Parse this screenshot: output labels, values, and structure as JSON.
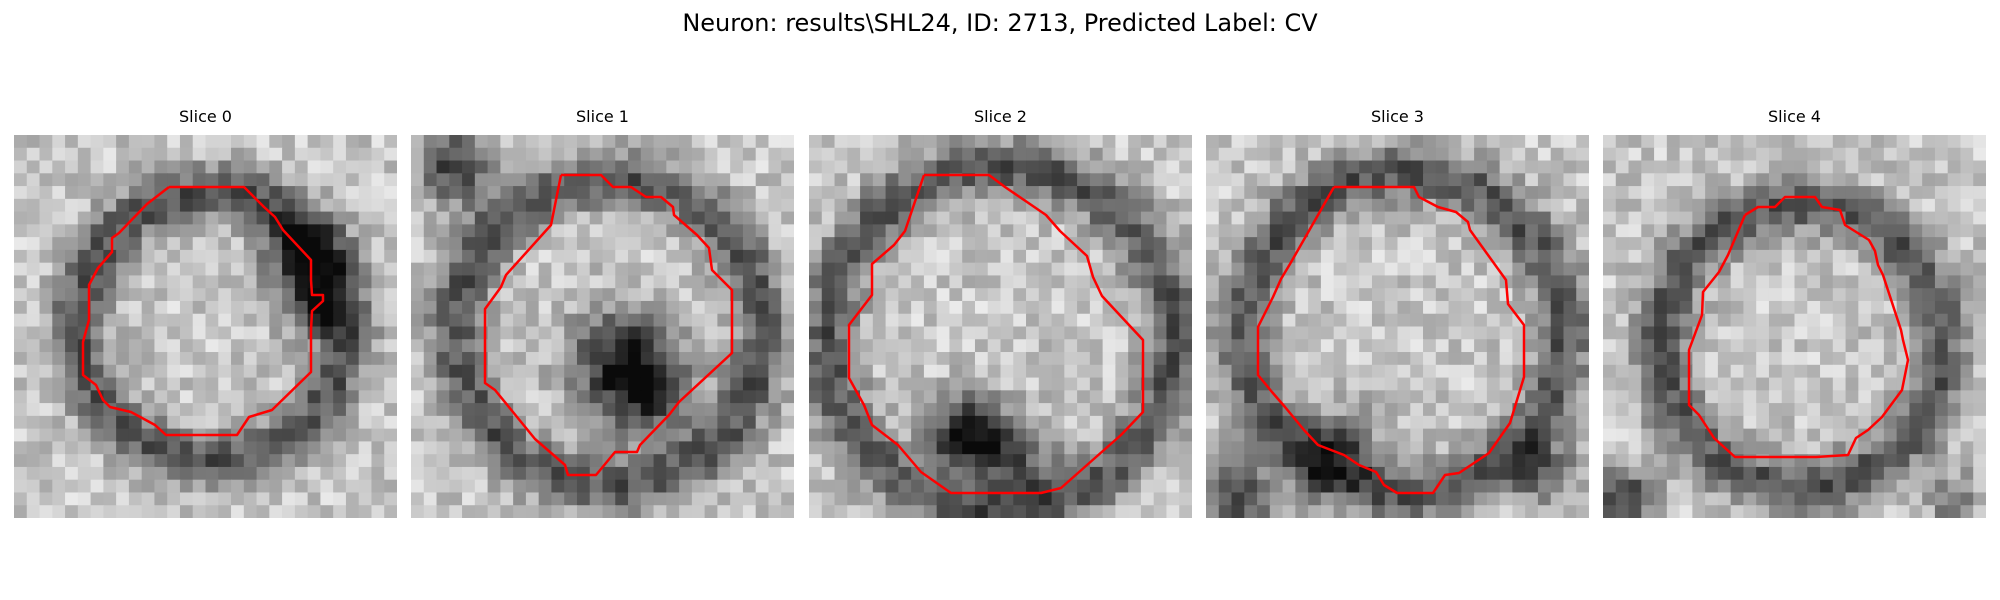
{
  "title": "Neuron: results\\SHL24, ID: 2713, Predicted Label: CV",
  "panels": [
    {
      "label": "Slice 0"
    },
    {
      "label": "Slice 1"
    },
    {
      "label": "Slice 2"
    },
    {
      "label": "Slice 3"
    },
    {
      "label": "Slice 4"
    }
  ],
  "colors": {
    "contour": "#ff0000",
    "background": "#ffffff"
  }
}
